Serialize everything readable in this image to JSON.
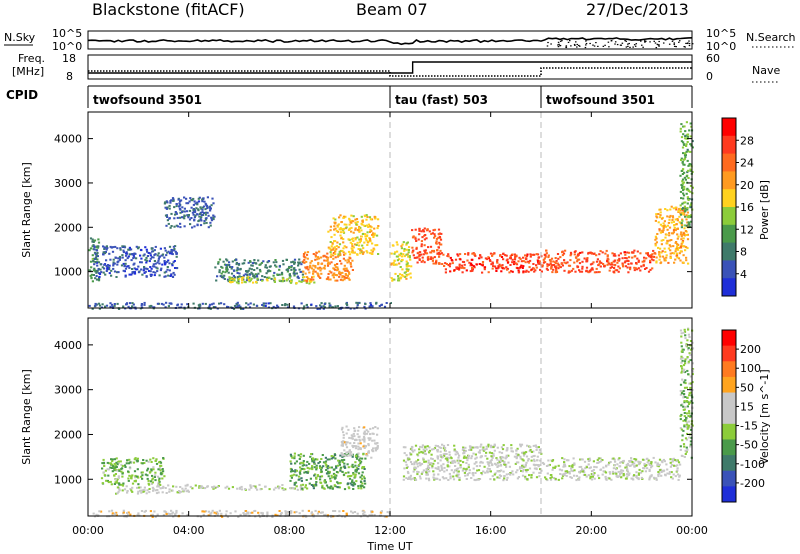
{
  "header": {
    "station": "Blackstone (fitACF)",
    "beam": "Beam 07",
    "date": "27/Dec/2013"
  },
  "strip_labels": {
    "nsky": "N.Sky",
    "nsearch": "N.Search",
    "freq_line1": "Freq.",
    "freq_line2": "[MHz]",
    "nave": "Nave",
    "cpid": "CPID"
  },
  "strip_ticks": {
    "noise_left": [
      "10^5",
      "10^0"
    ],
    "noise_right": [
      "10^5",
      "10^0"
    ],
    "freq": [
      "18",
      "8"
    ],
    "nave": [
      "60",
      "0"
    ]
  },
  "cpid_segments": [
    {
      "label": "twofsound 3501",
      "start": 0.0
    },
    {
      "label": "tau (fast) 503",
      "start": 12.0
    },
    {
      "label": "twofsound 3501",
      "start": 18.0
    }
  ],
  "x_axis": {
    "title": "Time UT",
    "ticks": [
      "00:00",
      "04:00",
      "08:00",
      "12:00",
      "16:00",
      "20:00",
      "00:00"
    ]
  },
  "colors": {
    "power": [
      "#1f2fd8",
      "#3a52b8",
      "#3f7a6a",
      "#4a9a4a",
      "#8ccc3a",
      "#ffd21f",
      "#ff9a1f",
      "#ff6a1f",
      "#ff3a1f",
      "#ff0000"
    ],
    "velocity": [
      "#1f2fd8",
      "#3a52b8",
      "#3f7a6a",
      "#4a9a4a",
      "#8ccc3a",
      "#c8c8c8",
      "#c8c8c8",
      "#ffa41f",
      "#ff7a1f",
      "#ff3a1f",
      "#ff0000"
    ]
  },
  "chart_data": [
    {
      "type": "heatmap",
      "title": "Power",
      "xlabel": "Time UT",
      "ylabel": "Slant Range [km]",
      "xlim": [
        0,
        24
      ],
      "ylim": [
        180,
        4600
      ],
      "yticks": [
        1000,
        2000,
        3000,
        4000
      ],
      "colorbar": {
        "label": "Power [dB]",
        "range": [
          0,
          32
        ],
        "ticks": [
          "28",
          "24",
          "20",
          "16",
          "12",
          "8",
          "4"
        ]
      },
      "bands": [
        {
          "t_start": 0.0,
          "t_end": 0.4,
          "range_start": 800,
          "range_end": 1800,
          "value": 10
        },
        {
          "t_start": 0.2,
          "t_end": 3.5,
          "range_start": 900,
          "range_end": 1600,
          "value": 5
        },
        {
          "t_start": 3.0,
          "t_end": 5.0,
          "range_start": 2000,
          "range_end": 2700,
          "value": 6
        },
        {
          "t_start": 5.0,
          "t_end": 8.5,
          "range_start": 800,
          "range_end": 1300,
          "value": 8
        },
        {
          "t_start": 5.5,
          "t_end": 9.0,
          "range_start": 750,
          "range_end": 900,
          "value": 16
        },
        {
          "t_start": 8.5,
          "t_end": 10.5,
          "range_start": 800,
          "range_end": 1500,
          "value": 22
        },
        {
          "t_start": 9.5,
          "t_end": 11.5,
          "range_start": 1400,
          "range_end": 2300,
          "value": 18
        },
        {
          "t_start": 12.0,
          "t_end": 12.8,
          "range_start": 800,
          "range_end": 1700,
          "value": 17
        },
        {
          "t_start": 12.8,
          "t_end": 14.0,
          "range_start": 1200,
          "range_end": 2000,
          "value": 26
        },
        {
          "t_start": 14.0,
          "t_end": 18.0,
          "range_start": 1000,
          "range_end": 1450,
          "value": 27
        },
        {
          "t_start": 18.0,
          "t_end": 22.5,
          "range_start": 1000,
          "range_end": 1500,
          "value": 26
        },
        {
          "t_start": 22.5,
          "t_end": 23.8,
          "range_start": 1200,
          "range_end": 2500,
          "value": 20
        },
        {
          "t_start": 23.5,
          "t_end": 24.0,
          "range_start": 2000,
          "range_end": 4400,
          "value": 12
        },
        {
          "t_start": 0.0,
          "t_end": 12.0,
          "range_start": 180,
          "range_end": 320,
          "value": 6
        }
      ]
    },
    {
      "type": "heatmap",
      "title": "Velocity",
      "xlabel": "Time UT",
      "ylabel": "Slant Range [km]",
      "xlim": [
        0,
        24
      ],
      "ylim": [
        180,
        4600
      ],
      "yticks": [
        1000,
        2000,
        3000,
        4000
      ],
      "colorbar": {
        "label": "Velocity [m s^-1]",
        "range": [
          -250,
          250
        ],
        "ticks": [
          "200",
          "100",
          "50",
          "15",
          "-15",
          "-50",
          "-100",
          "-200"
        ]
      },
      "bands": [
        {
          "t_start": 0.5,
          "t_end": 3.0,
          "range_start": 900,
          "range_end": 1500,
          "value": -60
        },
        {
          "t_start": 1.0,
          "t_end": 4.0,
          "range_start": 700,
          "range_end": 900,
          "value": 0
        },
        {
          "t_start": 4.0,
          "t_end": 8.5,
          "range_start": 780,
          "range_end": 900,
          "value": 0
        },
        {
          "t_start": 8.0,
          "t_end": 11.0,
          "range_start": 800,
          "range_end": 1600,
          "value": -80
        },
        {
          "t_start": 10.0,
          "t_end": 11.5,
          "range_start": 1500,
          "range_end": 2200,
          "value": 30
        },
        {
          "t_start": 12.5,
          "t_end": 18.0,
          "range_start": 1000,
          "range_end": 1800,
          "value": 0
        },
        {
          "t_start": 18.0,
          "t_end": 23.5,
          "range_start": 1000,
          "range_end": 1500,
          "value": 0
        },
        {
          "t_start": 23.5,
          "t_end": 24.0,
          "range_start": 1500,
          "range_end": 4400,
          "value": -40
        },
        {
          "t_start": 0.0,
          "t_end": 12.0,
          "range_start": 180,
          "range_end": 320,
          "value": 40
        }
      ]
    }
  ]
}
